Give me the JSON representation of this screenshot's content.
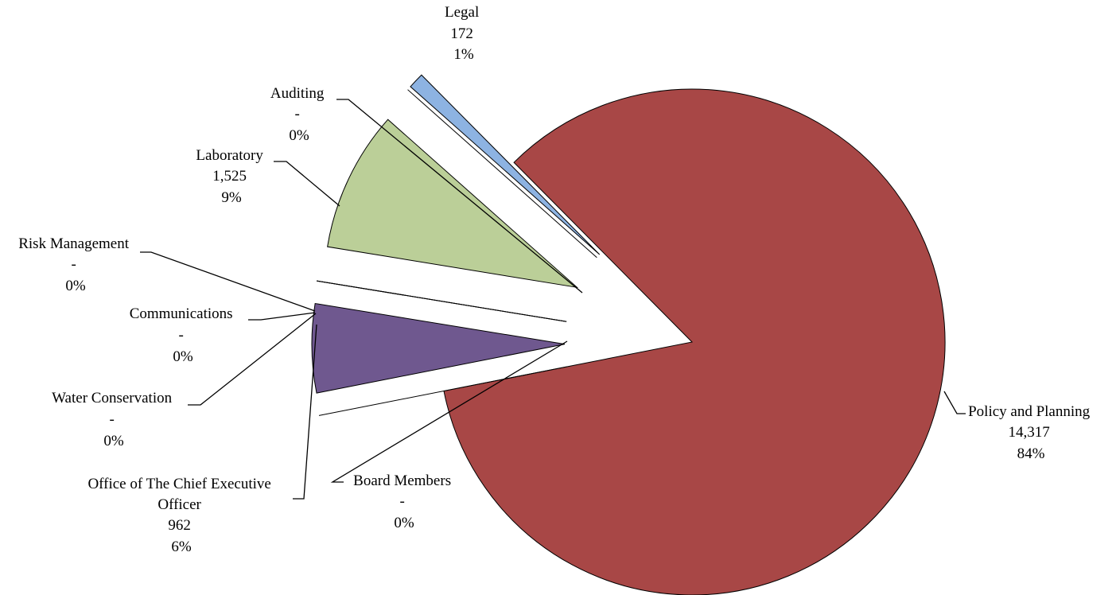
{
  "chart_data": {
    "type": "pie",
    "title": "",
    "slices": [
      {
        "name": "Policy and Planning",
        "value_label": "14,317",
        "percent_label": "84%",
        "value": 14317,
        "color": "#A84746"
      },
      {
        "name": "Board Members",
        "value_label": "-",
        "percent_label": "0%",
        "value": 0,
        "color": "#4F81BD"
      },
      {
        "name": "Office of The Chief Executive Officer",
        "value_label": "962",
        "percent_label": "6%",
        "value": 962,
        "color": "#6F588F"
      },
      {
        "name": "Water Conservation",
        "value_label": "-",
        "percent_label": "0%",
        "value": 0,
        "color": "#4BACC6"
      },
      {
        "name": "Communications",
        "value_label": "-",
        "percent_label": "0%",
        "value": 0,
        "color": "#F79646"
      },
      {
        "name": "Risk Management",
        "value_label": "-",
        "percent_label": "0%",
        "value": 0,
        "color": "#D49590"
      },
      {
        "name": "Laboratory",
        "value_label": "1,525",
        "percent_label": "9%",
        "value": 1525,
        "color": "#BBCF98"
      },
      {
        "name": "Auditing",
        "value_label": "-",
        "percent_label": "0%",
        "value": 0,
        "color": "#8064A2"
      },
      {
        "name": "Legal",
        "value_label": "172",
        "percent_label": "1%",
        "value": 172,
        "color": "#8DB3E2"
      }
    ]
  }
}
